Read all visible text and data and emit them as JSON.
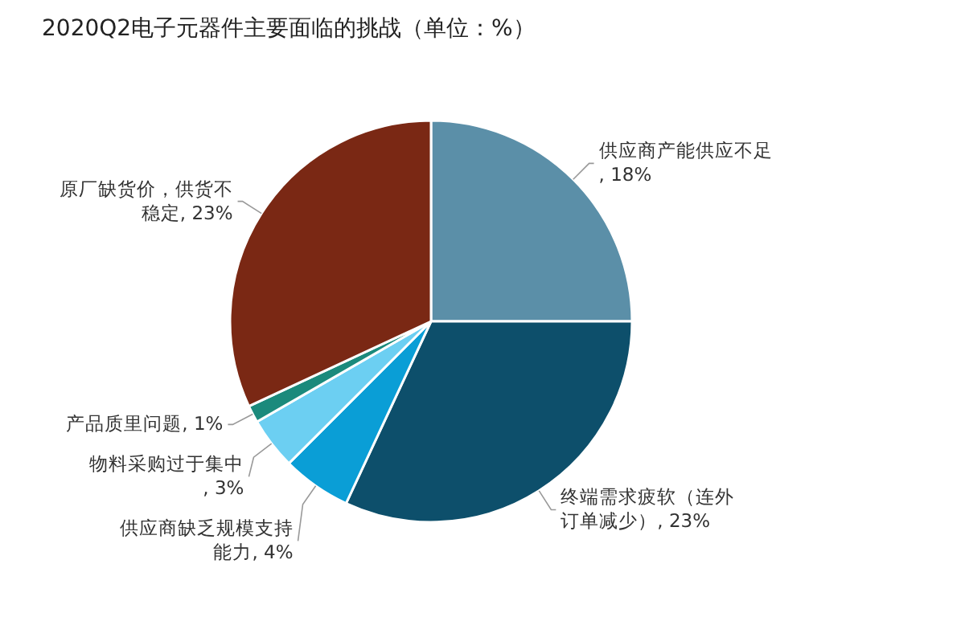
{
  "chart_data": {
    "type": "pie",
    "title": "2020Q2电子元器件主要面临的挑战（单位：%）",
    "categories": [
      "供应商产能供应不足",
      "终端需求疲软（连外订单减少）",
      "供应商缺乏规模支持能力",
      "物料采购过于集中",
      "产品质里问题",
      "原厂缺货价，供货不稳定"
    ],
    "values": [
      18,
      23,
      4,
      3,
      1,
      23
    ],
    "value_labels": [
      ", 18%",
      ", 23%",
      ", 4%",
      ", 3%",
      ", 1%",
      ", 23%"
    ],
    "colors": [
      "#5b8fa8",
      "#0d4f6b",
      "#0a9ed6",
      "#6ccff2",
      "#1b8a7c",
      "#7a2814"
    ]
  }
}
